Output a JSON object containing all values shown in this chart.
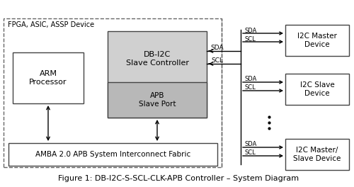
{
  "bg_color": "#ffffff",
  "figure_caption": "Figure 1: DB-I2C-S-SCL-CLK-APB Controller – System Diagram",
  "fpga_label": "FPGA, ASIC, ASSP Device",
  "arm_label": "ARM\nProcessor",
  "db_i2c_label": "DB-I2C\nSlave Controller",
  "apb_label": "APB\nSlave Port",
  "amba_label": "AMBA 2.0 APB System Interconnect Fabric",
  "i2c_master_label": "I2C Master\nDevice",
  "i2c_slave_label": "I2C Slave\nDevice",
  "i2c_master_slave_label": "I2C Master/\nSlave Device",
  "box_edge": "#444444",
  "dashed_edge": "#666666",
  "gray_fill": "#b8b8b8",
  "light_gray_fill": "#d0d0d0",
  "white_fill": "#ffffff"
}
